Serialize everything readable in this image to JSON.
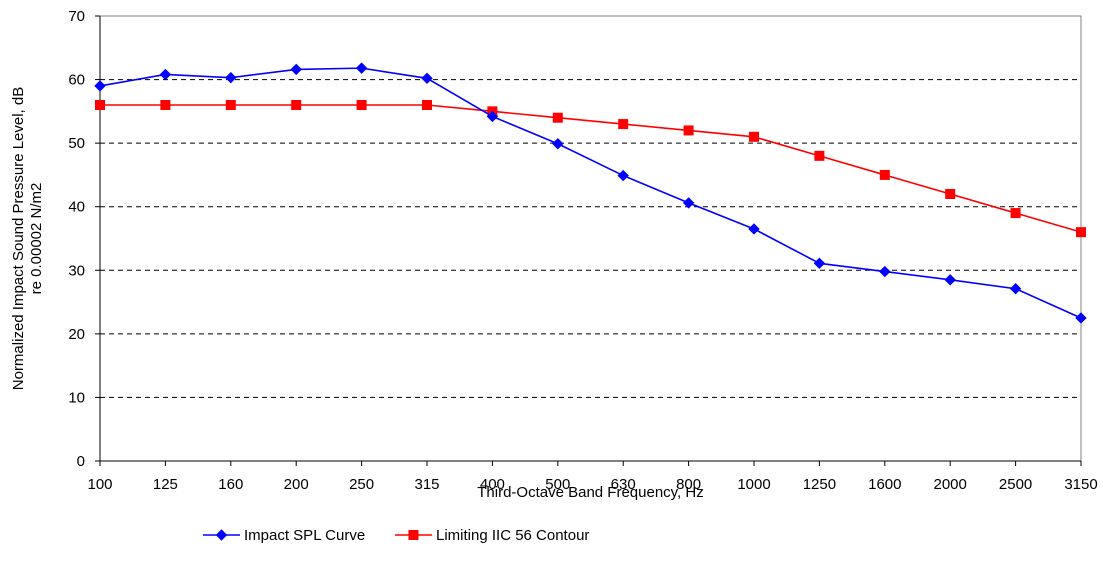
{
  "chart_data": {
    "type": "line",
    "title": "",
    "xlabel": "Third-Octave Band Frequency, Hz",
    "ylabel_lines": [
      "Normalized Impact Sound Pressure Level, dB",
      "re 0.00002 N/m2"
    ],
    "categories": [
      "100",
      "125",
      "160",
      "200",
      "250",
      "315",
      "400",
      "500",
      "630",
      "800",
      "1000",
      "1250",
      "1600",
      "2000",
      "2500",
      "3150"
    ],
    "ylim": [
      0,
      70
    ],
    "yticks": [
      "0",
      "10",
      "20",
      "30",
      "40",
      "50",
      "60",
      "70"
    ],
    "grid": "horizontal dashed",
    "legend_position": "bottom",
    "series": [
      {
        "name": "Impact SPL Curve",
        "color": "#0000FF",
        "marker": "diamond",
        "values": [
          59,
          60.8,
          60.3,
          61.6,
          61.8,
          60.2,
          54.2,
          49.9,
          44.9,
          40.6,
          36.5,
          31.1,
          29.8,
          28.5,
          27.1,
          22.5
        ]
      },
      {
        "name": "Limiting IIC 56 Contour",
        "color": "#FF0000",
        "marker": "square",
        "values": [
          56,
          56,
          56,
          56,
          56,
          56,
          55,
          54,
          53,
          52,
          51,
          48,
          45,
          42,
          39,
          36
        ]
      }
    ]
  }
}
